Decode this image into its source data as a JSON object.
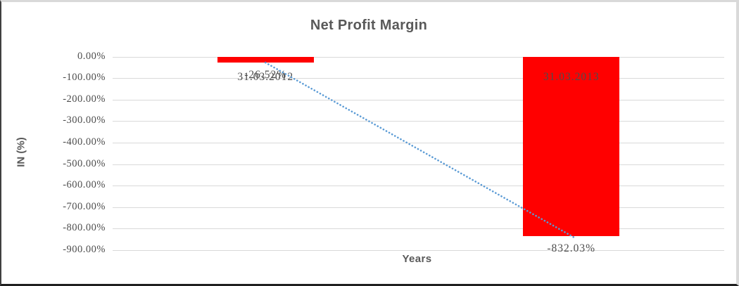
{
  "chart_data": {
    "type": "bar",
    "title": "Net Profit Margin",
    "xlabel": "Years",
    "ylabel": "IN (%)",
    "categories": [
      "31.03.2012",
      "31.03.2013"
    ],
    "series": [
      {
        "name": "Net Profit Margin",
        "values": [
          -26.52,
          -832.03
        ]
      }
    ],
    "data_labels": [
      "-26.52%",
      "-832.03%"
    ],
    "ylim": [
      -900,
      0
    ],
    "ytick_values": [
      0,
      -100,
      -200,
      -300,
      -400,
      -500,
      -600,
      -700,
      -800,
      -900
    ],
    "ytick_labels": [
      "0.00%",
      "-100.00%",
      "-200.00%",
      "-300.00%",
      "-400.00%",
      "-500.00%",
      "-600.00%",
      "-700.00%",
      "-800.00%",
      "-900.00%"
    ],
    "grid": true,
    "legend": false,
    "trendline": {
      "type": "linear",
      "style": "dotted",
      "through": [
        [
          0,
          -26.52
        ],
        [
          1,
          -832.03
        ]
      ]
    },
    "colors": {
      "bar": "#ff0000",
      "trendline": "#5b9bd5",
      "gridline": "#d9d9d9",
      "text": "#595959"
    }
  }
}
